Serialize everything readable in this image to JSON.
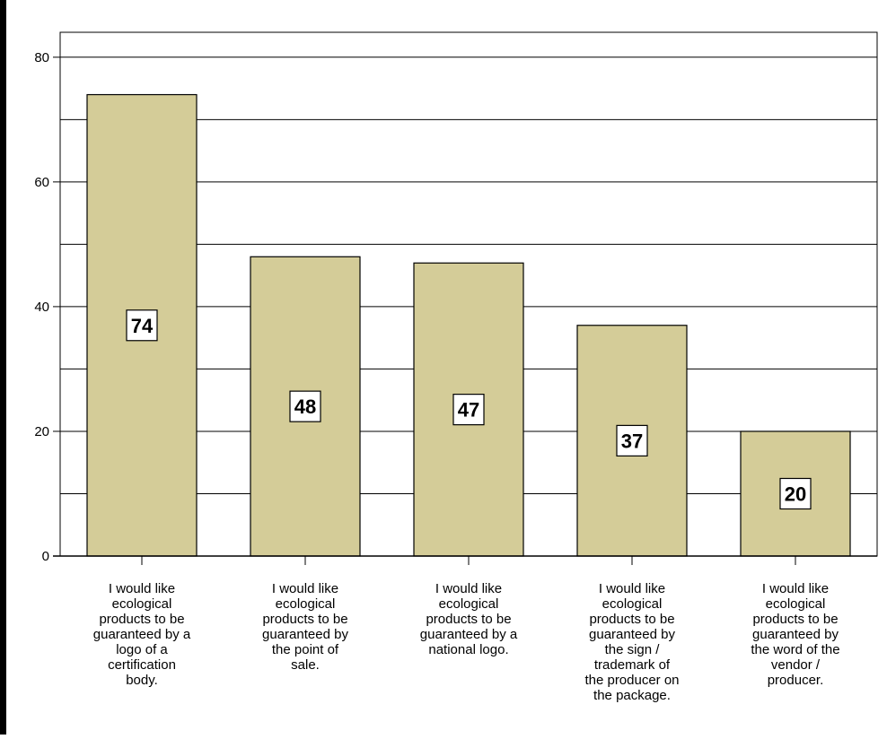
{
  "chart_data": {
    "type": "bar",
    "title": "",
    "xlabel": "",
    "ylabel": "",
    "ylim": [
      0,
      84
    ],
    "yticks": [
      0,
      20,
      40,
      60,
      80
    ],
    "minor_gridlines": [
      10,
      30,
      50,
      70
    ],
    "grid": true,
    "legend": "none",
    "categories": [
      "I would like ecological products to be guaranteed by a logo of a certification body.",
      "I would like ecological products to be guaranteed by the point of sale.",
      "I would like ecological products to be guaranteed by a national logo.",
      "I would like ecological products to be guaranteed by the sign / trademark of the producer on the package.",
      "I would like ecological products to be guaranteed by the word of the vendor / producer."
    ],
    "category_lines": [
      [
        "I would like",
        "ecological",
        "products to be",
        "guaranteed by a",
        "logo of a",
        "certification",
        "body."
      ],
      [
        "I would like",
        "ecological",
        "products to be",
        "guaranteed by",
        "the point of",
        "sale."
      ],
      [
        "I would like",
        "ecological",
        "products to be",
        "guaranteed by a",
        "national logo."
      ],
      [
        "I would like",
        "ecological",
        "products to be",
        "guaranteed by",
        "the sign /",
        "trademark of",
        "the producer on",
        "the package."
      ],
      [
        "I would like",
        "ecological",
        "products to be",
        "guaranteed by",
        "the word of the",
        "vendor /",
        "producer."
      ]
    ],
    "values": [
      74,
      48,
      47,
      37,
      20
    ],
    "data_labels": [
      "74",
      "48",
      "47",
      "37",
      "20"
    ],
    "colors": {
      "bar_fill": "#d4cc98",
      "bar_stroke": "#000000",
      "grid": "#000000",
      "label_box": "#ffffff"
    }
  }
}
